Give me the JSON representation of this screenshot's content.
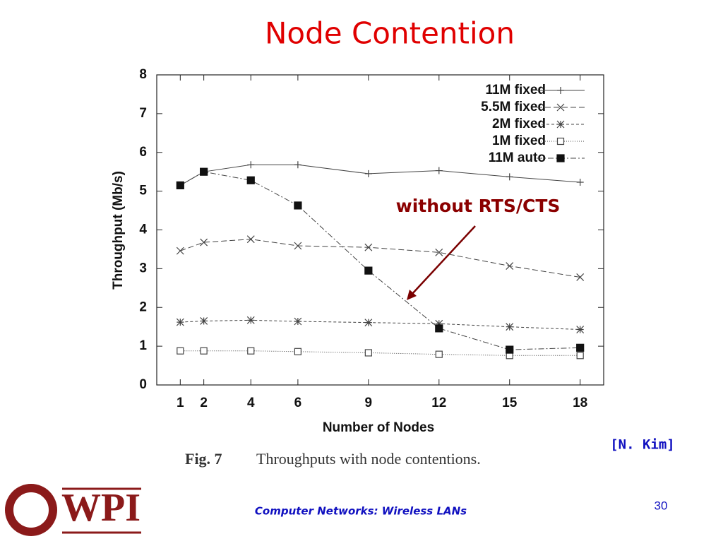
{
  "slide_title": "Node Contention",
  "chart_data": {
    "type": "line",
    "x_label": "Number of Nodes",
    "y_label": "Throughput (Mb/s)",
    "annotation": "without RTS/CTS",
    "x": [
      1,
      2,
      4,
      6,
      9,
      12,
      15,
      18
    ],
    "xlim": [
      0,
      19
    ],
    "xticks": [
      1,
      2,
      4,
      6,
      9,
      12,
      15,
      18
    ],
    "ylim": [
      0,
      8
    ],
    "yticks": [
      0,
      1,
      2,
      3,
      4,
      5,
      6,
      7,
      8
    ],
    "legend": "top-right",
    "grid": false,
    "series": [
      {
        "name": "11M fixed",
        "color": "#444444",
        "marker": "plus",
        "dash": "none",
        "values": [
          5.15,
          5.5,
          5.68,
          5.68,
          5.45,
          5.53,
          5.37,
          5.23
        ]
      },
      {
        "name": "5.5M fixed",
        "color": "#444444",
        "marker": "cross",
        "dash": "8 4",
        "values": [
          3.46,
          3.68,
          3.76,
          3.59,
          3.55,
          3.42,
          3.07,
          2.78
        ]
      },
      {
        "name": "2M fixed",
        "color": "#444444",
        "marker": "star",
        "dash": "4 3",
        "values": [
          1.62,
          1.65,
          1.67,
          1.64,
          1.61,
          1.58,
          1.5,
          1.43
        ]
      },
      {
        "name": "1M fixed",
        "color": "#444444",
        "marker": "open-square",
        "dash": "1 2",
        "values": [
          0.88,
          0.88,
          0.88,
          0.86,
          0.83,
          0.79,
          0.76,
          0.76
        ]
      },
      {
        "name": "11M auto",
        "color": "#444444",
        "marker": "filled-square",
        "dash": "8 3 2 3",
        "values": [
          5.15,
          5.5,
          5.28,
          4.63,
          2.95,
          1.46,
          0.91,
          0.96
        ]
      }
    ]
  },
  "caption": {
    "label": "Fig. 7",
    "text": "Throughputs with node contentions."
  },
  "citation": "[N. Kim]",
  "footer": "Computer Networks: Wireless LANs",
  "page_number": "30",
  "logo": "WPI"
}
